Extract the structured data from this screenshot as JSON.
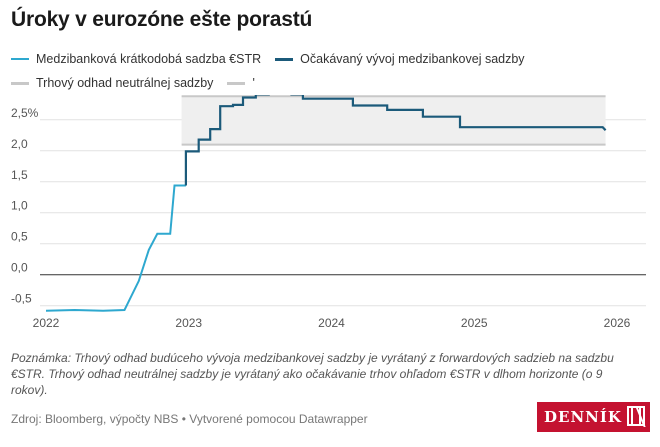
{
  "title": "Úroky v eurozóne ešte porastú",
  "legend": [
    {
      "label": "Medzibanková krátkodobá sadzba €STR",
      "color": "#2ea8cf"
    },
    {
      "label": "Očakávaný vývoj medzibankovej sadzby",
      "color": "#1b5a7a"
    },
    {
      "label": "Trhový odhad neutrálnej sadzby",
      "color": "#c8c8c8"
    },
    {
      "label": "'",
      "color": "#c8c8c8"
    }
  ],
  "note": "Poznámka: Trhový odhad budúceho vývoja medzibankovej sadzby je vyrátaný z forwardových sadzieb na sadzbu €STR. Trhový odhad neutrálnej sadzby je vyrátaný ako očakávanie trhov ohľadom €STR v dlhom horizonte (o 9 rokov).",
  "source": "Zdroj: Bloomberg, výpočty NBS • Vytvorené pomocou Datawrapper",
  "logo": "DENNÍK",
  "colors": {
    "estr": "#2ea8cf",
    "expected": "#1b5a7a",
    "band": "#c8c8c8",
    "bandFill": "#efefef",
    "zero": "#333333",
    "grid": "#e2e2e2",
    "tick": "#555555"
  },
  "chart_data": {
    "type": "line",
    "xlim": [
      2022.0,
      2026.0
    ],
    "ylim": [
      -0.65,
      2.9
    ],
    "yticks": [
      -0.5,
      0.0,
      0.5,
      1.0,
      1.5,
      2.0,
      2.5
    ],
    "ytick_labels": [
      "-0,5",
      "0,0",
      "0,5",
      "1,0",
      "1,5",
      "2,0",
      "2,5%"
    ],
    "xticks": [
      2022,
      2023,
      2024,
      2025,
      2026
    ],
    "xtick_labels": [
      "2022",
      "2023",
      "2024",
      "2025",
      "2026"
    ],
    "grid": true,
    "band": {
      "name": "Trhový odhad neutrálnej sadzby",
      "x": [
        2022.95,
        2025.92
      ],
      "y": [
        2.1,
        2.88
      ]
    },
    "series": [
      {
        "name": "Medzibanková krátkodobá sadzba €STR",
        "x": [
          2022.0,
          2022.2,
          2022.4,
          2022.55,
          2022.65,
          2022.72,
          2022.78,
          2022.8,
          2022.87,
          2022.9,
          2022.98
        ],
        "y": [
          -0.58,
          -0.57,
          -0.58,
          -0.57,
          -0.1,
          0.4,
          0.66,
          0.66,
          0.66,
          1.44,
          1.44
        ]
      },
      {
        "name": "Očakávaný vývoj medzibankovej sadzby",
        "x": [
          2022.98,
          2022.98,
          2023.07,
          2023.07,
          2023.15,
          2023.15,
          2023.22,
          2023.22,
          2023.31,
          2023.31,
          2023.38,
          2023.38,
          2023.47,
          2023.47,
          2023.56,
          2023.56,
          2023.65,
          2023.65,
          2023.72,
          2023.72,
          2023.8,
          2023.8,
          2024.15,
          2024.15,
          2024.39,
          2024.39,
          2024.64,
          2024.64,
          2024.9,
          2024.9,
          2025.4,
          2025.4,
          2025.9,
          2025.92
        ],
        "y": [
          1.44,
          1.99,
          1.99,
          2.18,
          2.18,
          2.35,
          2.35,
          2.72,
          2.72,
          2.74,
          2.74,
          2.86,
          2.86,
          2.91,
          2.91,
          2.93,
          2.93,
          2.97,
          2.97,
          2.91,
          2.91,
          2.84,
          2.84,
          2.73,
          2.73,
          2.66,
          2.66,
          2.55,
          2.55,
          2.38,
          2.38,
          2.38,
          2.38,
          2.33
        ]
      }
    ]
  }
}
